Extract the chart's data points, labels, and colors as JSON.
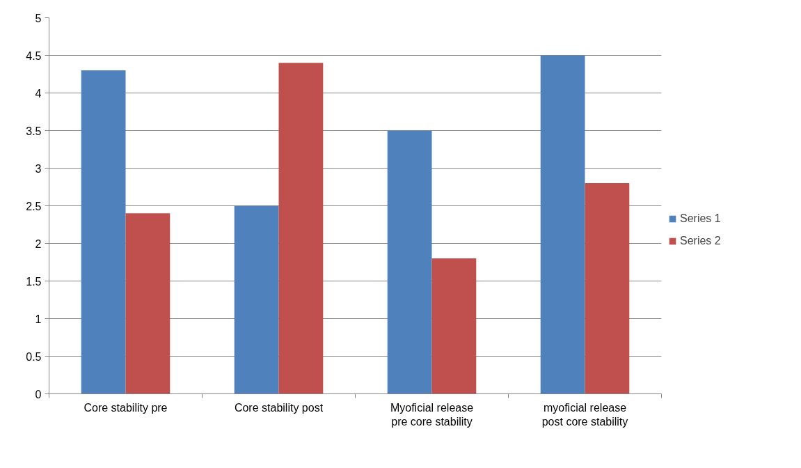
{
  "chart_data": {
    "type": "bar",
    "categories": [
      "Core stability pre",
      "Core stability post",
      "Myoficial release pre core stability",
      "myoficial release post core stability"
    ],
    "series": [
      {
        "name": "Series 1",
        "color": "#4f81bd",
        "values": [
          4.3,
          2.5,
          3.5,
          4.5
        ]
      },
      {
        "name": "Series 2",
        "color": "#c0504d",
        "values": [
          2.4,
          4.4,
          1.8,
          2.8
        ]
      }
    ],
    "ylim": [
      0,
      5
    ],
    "yticks": [
      0,
      0.5,
      1,
      1.5,
      2,
      2.5,
      3,
      3.5,
      4,
      4.5,
      5
    ],
    "grid": "y",
    "legend": "right"
  }
}
